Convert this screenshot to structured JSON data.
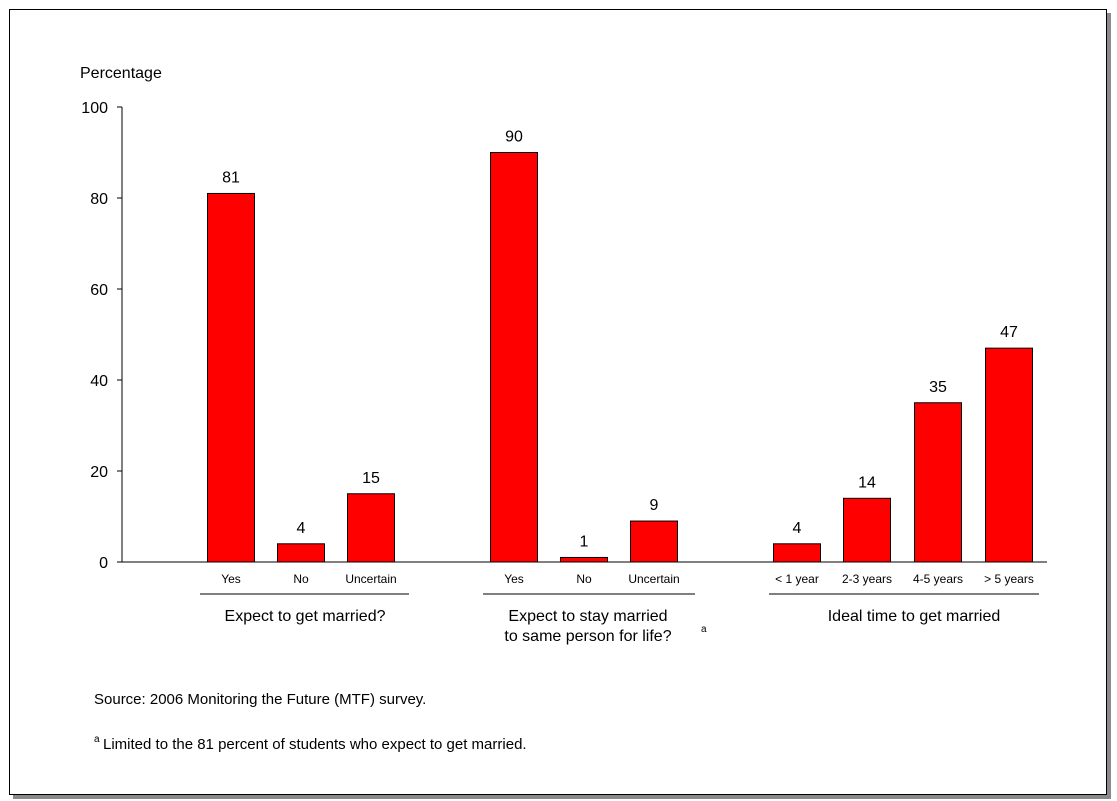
{
  "chart_data": {
    "type": "bar",
    "ylabel": "Percentage",
    "ylim": [
      0,
      100
    ],
    "yticks": [
      0,
      20,
      40,
      60,
      80,
      100
    ],
    "grid": false,
    "bar_color": "#ff0000",
    "groups": [
      {
        "title": [
          "Expect to get married?"
        ],
        "footnote_marker": "",
        "categories": [
          "Yes",
          "No",
          "Uncertain"
        ],
        "values": [
          81,
          4,
          15
        ]
      },
      {
        "title": [
          "Expect to stay married",
          "to same person for life?"
        ],
        "footnote_marker": "a",
        "categories": [
          "Yes",
          "No",
          "Uncertain"
        ],
        "values": [
          90,
          1,
          9
        ]
      },
      {
        "title": [
          "Ideal time to get married"
        ],
        "footnote_marker": "",
        "categories": [
          "< 1 year",
          "2-3 years",
          "4-5 years",
          "> 5 years"
        ],
        "values": [
          4,
          14,
          35,
          47
        ]
      }
    ]
  },
  "notes": {
    "source": "Source:  2006 Monitoring the Future (MTF) survey.",
    "footnote_marker": "a",
    "footnote": "Limited to the 81 percent of students who expect to get married."
  }
}
